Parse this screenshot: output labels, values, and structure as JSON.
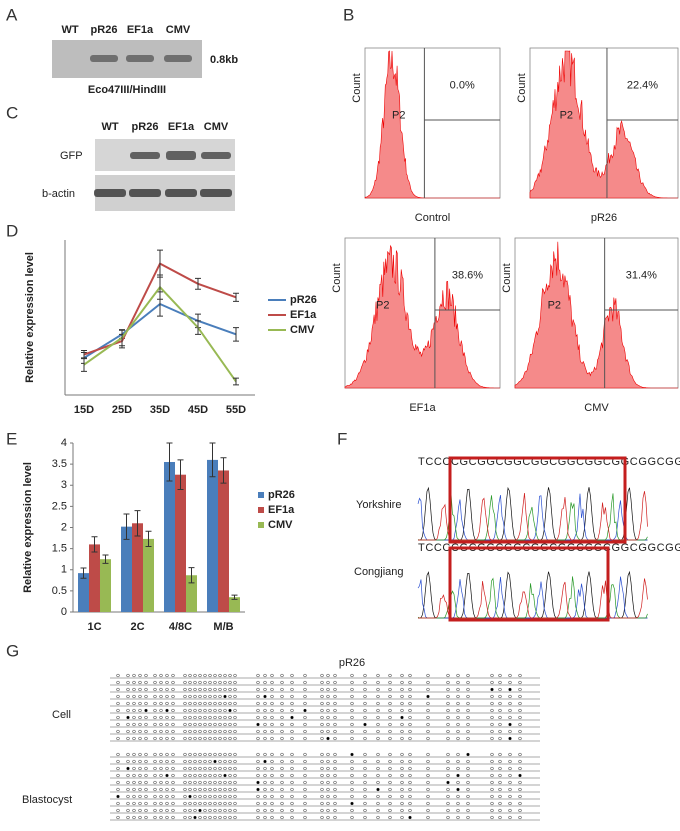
{
  "panel_labels": [
    "A",
    "B",
    "C",
    "D",
    "E",
    "F",
    "G"
  ],
  "gel": {
    "lanes": [
      "WT",
      "pR26",
      "EF1a",
      "CMV"
    ],
    "size": "0.8kb",
    "caption": "Eco47III/HindIII"
  },
  "western": {
    "lanes": [
      "WT",
      "pR26",
      "EF1a",
      "CMV"
    ],
    "rows": [
      "GFP",
      "b-actin"
    ]
  },
  "flow": {
    "gate": "P2",
    "ylabel": "Count",
    "plots": [
      {
        "label": "Control",
        "percent": "0.0%"
      },
      {
        "label": "pR26",
        "percent": "22.4%"
      },
      {
        "label": "EF1a",
        "percent": "38.6%"
      },
      {
        "label": "CMV",
        "percent": "31.4%"
      }
    ]
  },
  "chart_data": [
    {
      "type": "line",
      "ylabel": "Relative expression level",
      "categories": [
        "15D",
        "25D",
        "35D",
        "45D",
        "55D"
      ],
      "ylim": [
        0.4,
        2.7
      ],
      "series": [
        {
          "name": "pR26",
          "color": "#4a7ebb",
          "values": [
            0.95,
            1.3,
            1.75,
            1.5,
            1.3
          ],
          "errors": [
            0.08,
            0.06,
            0.18,
            0.1,
            0.1
          ]
        },
        {
          "name": "EF1a",
          "color": "#be4b48",
          "values": [
            1.0,
            1.2,
            2.35,
            2.05,
            1.85
          ],
          "errors": [
            0.06,
            0.1,
            0.2,
            0.08,
            0.06
          ]
        },
        {
          "name": "CMV",
          "color": "#98b954",
          "values": [
            0.85,
            1.25,
            2.0,
            1.4,
            0.6
          ],
          "errors": [
            0.1,
            0.12,
            0.18,
            0.1,
            0.05
          ]
        }
      ]
    },
    {
      "type": "bar",
      "ylabel": "Relative expression level",
      "categories": [
        "1C",
        "2C",
        "4/8C",
        "M/B"
      ],
      "ylim": [
        0,
        4
      ],
      "yticks": [
        0,
        0.5,
        1,
        1.5,
        2,
        2.5,
        3,
        3.5,
        4
      ],
      "series": [
        {
          "name": "pR26",
          "color": "#4a7ebb",
          "values": [
            0.92,
            2.02,
            3.55,
            3.6
          ],
          "errors": [
            0.12,
            0.3,
            0.45,
            0.4
          ]
        },
        {
          "name": "EF1a",
          "color": "#be4b48",
          "values": [
            1.6,
            2.1,
            3.25,
            3.35
          ],
          "errors": [
            0.18,
            0.3,
            0.35,
            0.3
          ]
        },
        {
          "name": "CMV",
          "color": "#98b954",
          "values": [
            1.25,
            1.73,
            0.87,
            0.35
          ],
          "errors": [
            0.1,
            0.18,
            0.18,
            0.05
          ]
        }
      ]
    }
  ],
  "sequencing": {
    "rows": [
      {
        "label": "Yorkshire",
        "sequence": "TCCCCGCGGCGGCGGCGGCGGCGGCGGCGGCGGCGC"
      },
      {
        "label": "Congjiang",
        "sequence": "TCCCCGCGGCGGCGGCGGCGGCGGCGGCGGC"
      }
    ]
  },
  "methylation": {
    "title": "pR26",
    "groups": [
      "Cell",
      "Blastocyst"
    ]
  }
}
